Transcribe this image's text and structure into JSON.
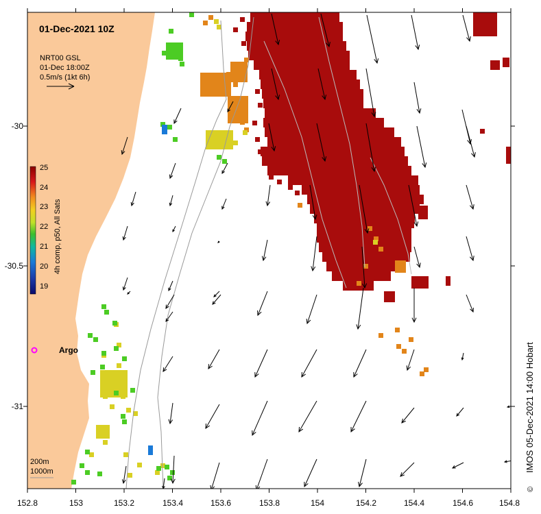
{
  "title": "01-Dec-2021 10Z",
  "velocity_legend": {
    "line1": "NRT00 GSL",
    "line2": "01-Dec 18:00Z",
    "line3": "0.5m/s (1kt 6h)"
  },
  "colorbar": {
    "label": "4h comp, p50, All Sats",
    "ticks": [
      "25",
      "24",
      "23",
      "22",
      "21",
      "20",
      "19"
    ],
    "colors": [
      "#8b0000",
      "#d7191c",
      "#f28c1e",
      "#f2cf20",
      "#bfe02a",
      "#3cbf2e",
      "#10b8a0",
      "#1a7ad8",
      "#1c3aa8",
      "#0b0b6b"
    ]
  },
  "x_axis": {
    "ticks": [
      "152.8",
      "153",
      "153.2",
      "153.4",
      "153.6",
      "153.8",
      "154",
      "154.2",
      "154.4",
      "154.6",
      "154.8"
    ]
  },
  "y_axis": {
    "ticks": [
      "-30",
      "-30.5",
      "-31"
    ]
  },
  "argo_label": "Argo",
  "isobaths": {
    "line1": "200m",
    "line2": "1000m"
  },
  "credit": "IMOS 05-Dec-2021 14:00 Hobart",
  "copyright_symbol": "©",
  "colors": {
    "land": "#fac99a",
    "sea_hot": "#a80c0c",
    "sea_orange": "#e2851a",
    "sea_yellow": "#d9d024",
    "sea_green": "#4ccc24",
    "argo": "#ff00ff"
  }
}
